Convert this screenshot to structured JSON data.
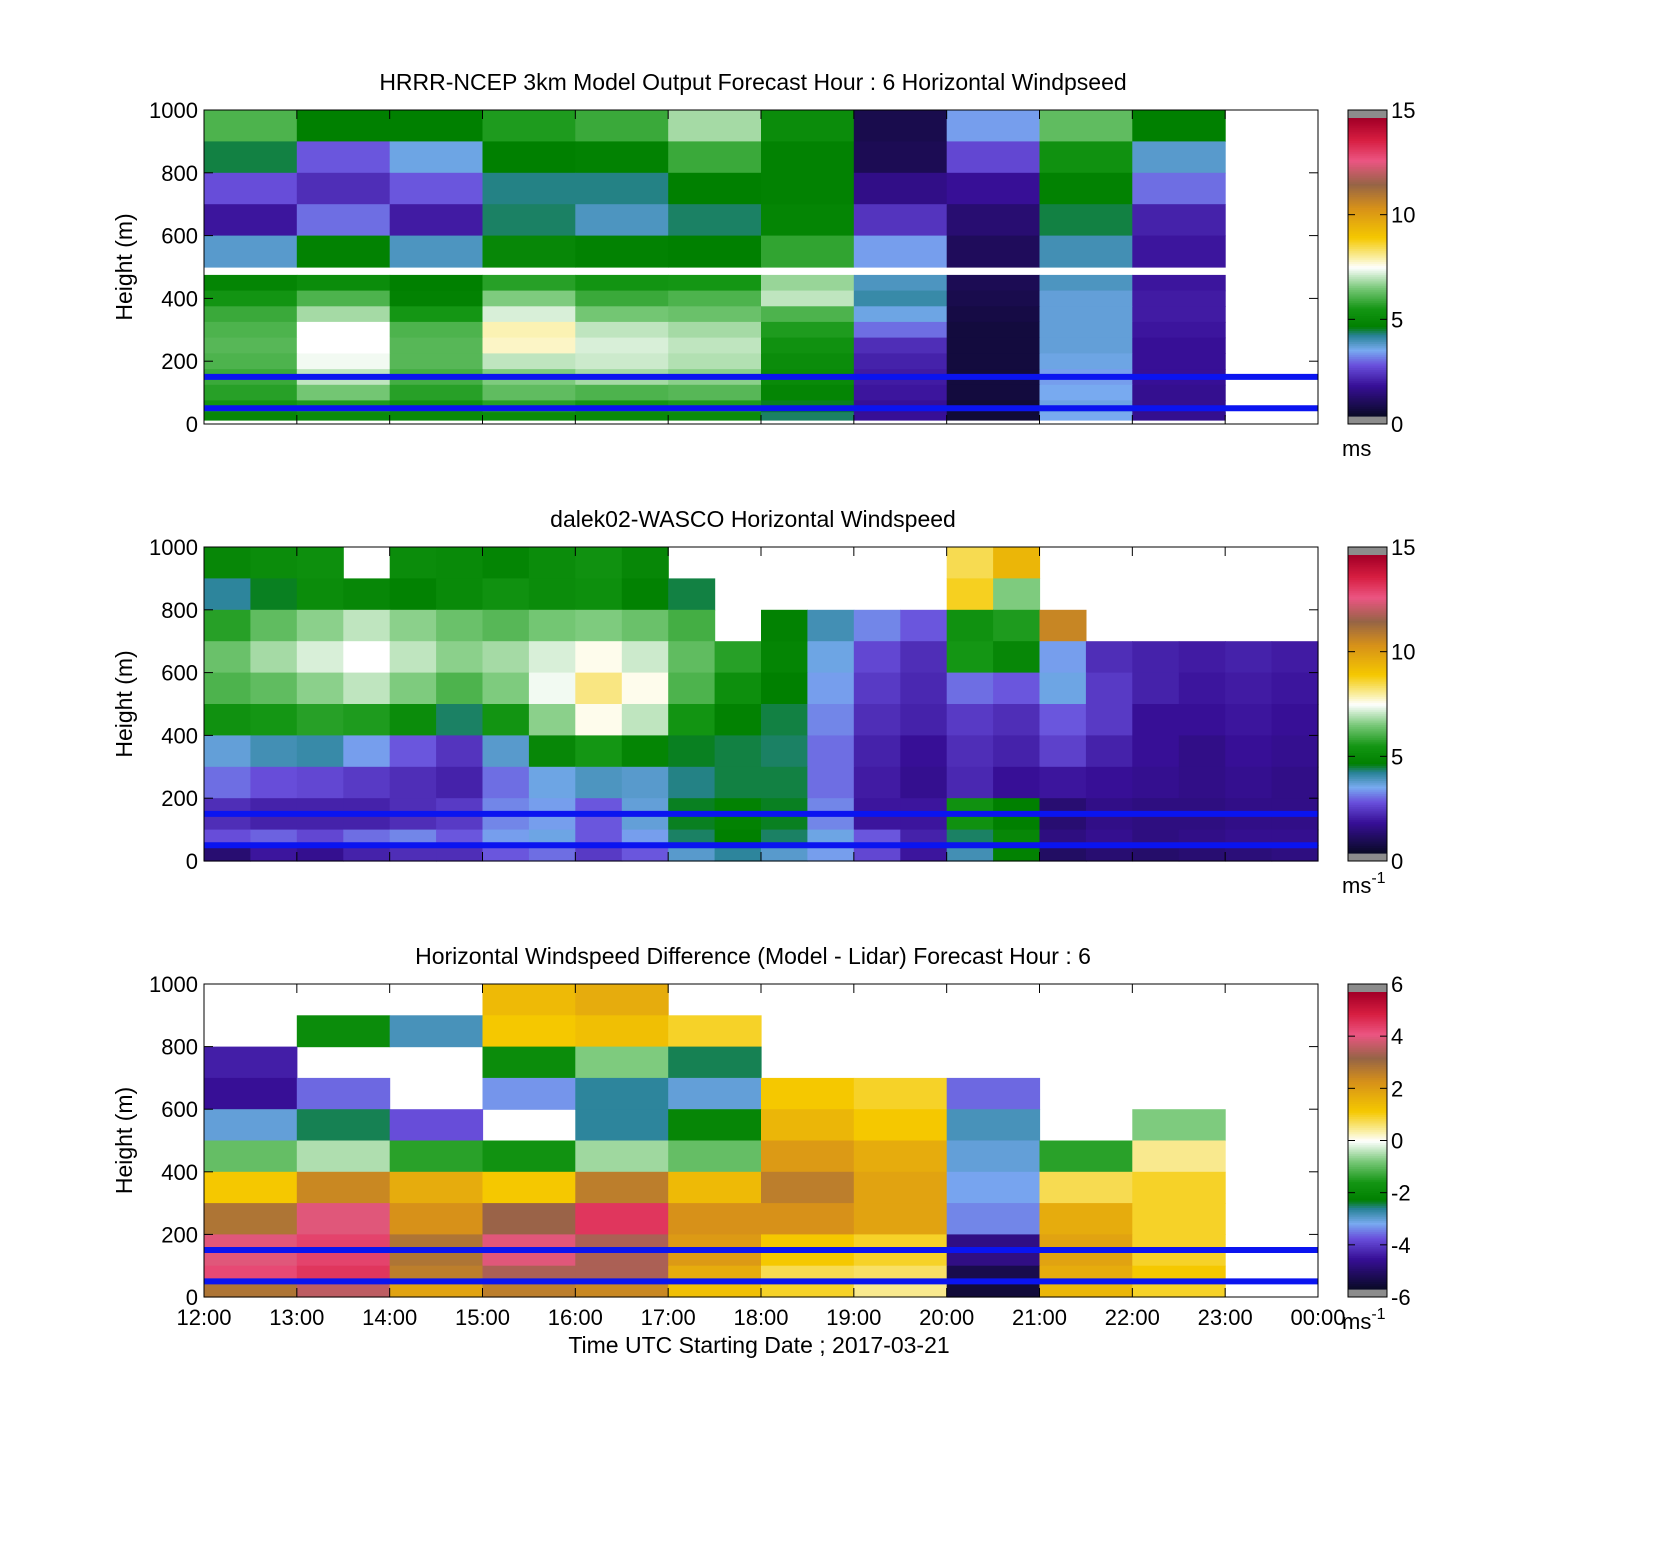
{
  "chart_data": [
    {
      "type": "heatmap",
      "title": "HRRR-NCEP 3km Model Output   Forecast Hour : 6 Horizontal Windpseed",
      "xlabel": "",
      "ylabel": "Height (m)",
      "ylim": [
        0,
        1000
      ],
      "yticks": [
        "0",
        "200",
        "400",
        "600",
        "800",
        "1000"
      ],
      "xtick_labels": [],
      "colorbar": {
        "min": 0,
        "max": 15,
        "ticks": [
          "0",
          "5",
          "10",
          "15"
        ],
        "unit": "ms",
        "unit_sup": ""
      },
      "reference_lines_m": [
        50,
        150
      ],
      "x_hours": [
        12,
        13,
        14,
        15,
        16,
        17,
        18,
        19,
        20,
        21,
        22
      ],
      "bin_hours": 1,
      "heights_m": [
        950,
        850,
        750,
        650,
        550,
        450,
        400,
        350,
        300,
        250,
        200,
        150,
        100,
        50,
        25
      ],
      "bin_heights_m": [
        100,
        100,
        100,
        100,
        100,
        50,
        50,
        50,
        50,
        50,
        50,
        50,
        50,
        50,
        25
      ],
      "values": [
        [
          6,
          4.5,
          4.5,
          5.5,
          5.8,
          6.8,
          5,
          0.5,
          3.2,
          6.2,
          4.5
        ],
        [
          4.3,
          2.6,
          3.4,
          4.5,
          4.6,
          5.8,
          4.6,
          0.6,
          2.4,
          5.2,
          3.6
        ],
        [
          2.5,
          2.0,
          2.6,
          4.1,
          4.1,
          4.5,
          4.6,
          1.3,
          1.5,
          4.6,
          2.8
        ],
        [
          1.6,
          2.8,
          1.7,
          4.2,
          3.7,
          4.2,
          4.7,
          2.1,
          1.0,
          4.3,
          1.8
        ],
        [
          3.6,
          4.6,
          3.7,
          4.8,
          4.6,
          4.5,
          5.7,
          3.2,
          0.7,
          3.8,
          1.6
        ],
        [
          4.7,
          5.0,
          4.5,
          5.6,
          5.3,
          5.4,
          6.7,
          3.7,
          0.6,
          3.7,
          1.6
        ],
        [
          5.3,
          6.0,
          4.6,
          6.5,
          5.8,
          6.0,
          7.0,
          3.9,
          0.5,
          3.5,
          1.7
        ],
        [
          5.8,
          6.8,
          5.4,
          7.2,
          6.4,
          6.3,
          6.0,
          3.4,
          0.4,
          3.5,
          1.7
        ],
        [
          6.0,
          7.5,
          6.0,
          7.9,
          7.0,
          6.8,
          5.5,
          2.8,
          0.3,
          3.5,
          1.6
        ],
        [
          6.1,
          7.5,
          6.1,
          7.8,
          7.2,
          7.0,
          5.2,
          2.0,
          0.3,
          3.5,
          1.5
        ],
        [
          6.0,
          7.4,
          6.1,
          7.0,
          7.1,
          6.9,
          5.0,
          1.8,
          0.3,
          3.4,
          1.5
        ],
        [
          5.8,
          7.0,
          5.9,
          6.5,
          6.8,
          6.6,
          4.9,
          1.7,
          0.3,
          3.2,
          1.5
        ],
        [
          5.6,
          6.4,
          5.6,
          6.2,
          6.0,
          6.1,
          4.7,
          1.6,
          0.3,
          3.3,
          1.4
        ],
        [
          5.3,
          5.5,
          5.2,
          5.6,
          5.4,
          5.5,
          4.4,
          1.5,
          0.2,
          3.4,
          1.4
        ],
        [
          4.8,
          5.0,
          4.9,
          5.0,
          4.9,
          5.0,
          4.2,
          1.5,
          0.2,
          3.3,
          1.4
        ]
      ]
    },
    {
      "type": "heatmap",
      "title": "dalek02-WASCO  Horizontal Windspeed",
      "xlabel": "",
      "ylabel": "Height (m)",
      "ylim": [
        0,
        1000
      ],
      "yticks": [
        "0",
        "200",
        "400",
        "600",
        "800",
        "1000"
      ],
      "xtick_labels": [],
      "colorbar": {
        "min": 0,
        "max": 15,
        "ticks": [
          "0",
          "5",
          "10",
          "15"
        ],
        "unit": "ms",
        "unit_sup": "-1"
      },
      "reference_lines_m": [
        50,
        150
      ],
      "x_hours": [
        12,
        12.5,
        13,
        13.5,
        14,
        14.5,
        15,
        15.5,
        16,
        16.5,
        17,
        17.5,
        18,
        18.5,
        19,
        19.5,
        20,
        20.5,
        21,
        21.5,
        22,
        22.5,
        23,
        23.5
      ],
      "bin_hours": 0.5,
      "heights_m": [
        950,
        850,
        750,
        650,
        550,
        450,
        350,
        250,
        150,
        75,
        25
      ],
      "bin_heights_m": [
        100,
        100,
        100,
        100,
        100,
        100,
        100,
        100,
        100,
        50,
        50
      ],
      "values": [
        [
          4.8,
          5.0,
          5.1,
          null,
          5.0,
          4.9,
          4.7,
          5.0,
          5.2,
          4.8,
          null,
          null,
          null,
          null,
          null,
          null,
          8.5,
          9.5,
          null,
          null,
          null,
          null,
          null,
          null
        ],
        [
          4.0,
          4.4,
          5.0,
          4.8,
          4.6,
          4.9,
          5.2,
          5.0,
          5.1,
          4.6,
          4.3,
          null,
          null,
          null,
          null,
          null,
          8.8,
          6.5,
          null,
          null,
          null,
          null,
          null,
          null
        ],
        [
          5.6,
          6.2,
          6.6,
          7.0,
          6.6,
          6.3,
          6.1,
          6.4,
          6.5,
          6.3,
          5.9,
          null,
          4.6,
          3.8,
          3.0,
          2.6,
          5.2,
          5.5,
          10.8,
          null,
          null,
          null,
          null,
          null
        ],
        [
          6.3,
          6.8,
          7.2,
          7.5,
          7.0,
          6.6,
          6.8,
          7.2,
          7.6,
          7.1,
          6.2,
          5.6,
          4.7,
          3.4,
          2.4,
          2.0,
          5.4,
          4.8,
          3.2,
          2.0,
          1.8,
          1.7,
          1.8,
          1.7
        ],
        [
          6.0,
          6.2,
          6.6,
          7.0,
          6.5,
          6.0,
          6.5,
          7.4,
          8.2,
          7.6,
          6.0,
          5.1,
          4.5,
          3.2,
          2.2,
          1.9,
          2.8,
          2.6,
          3.4,
          2.2,
          1.8,
          1.6,
          1.7,
          1.6
        ],
        [
          5.2,
          5.4,
          5.6,
          5.5,
          5.0,
          4.2,
          5.3,
          6.6,
          7.6,
          7.0,
          5.3,
          4.6,
          4.3,
          3.0,
          2.0,
          1.8,
          2.2,
          2.0,
          2.6,
          2.2,
          1.5,
          1.5,
          1.6,
          1.5
        ],
        [
          3.5,
          3.8,
          3.9,
          3.2,
          2.6,
          2.1,
          3.6,
          4.8,
          5.4,
          4.7,
          4.4,
          4.3,
          4.2,
          2.8,
          1.8,
          1.5,
          2.0,
          1.8,
          2.3,
          1.8,
          1.5,
          1.3,
          1.5,
          1.4
        ],
        [
          2.8,
          2.5,
          2.4,
          2.2,
          2.0,
          1.8,
          2.8,
          3.4,
          3.7,
          3.6,
          4.1,
          4.3,
          4.3,
          2.8,
          1.7,
          1.4,
          1.9,
          1.5,
          1.6,
          1.5,
          1.4,
          1.3,
          1.4,
          1.3
        ],
        [
          2.0,
          1.8,
          1.8,
          1.8,
          2.0,
          2.2,
          3.0,
          3.2,
          2.6,
          3.5,
          4.4,
          4.6,
          4.4,
          3.0,
          1.6,
          1.6,
          5.2,
          4.5,
          1.0,
          1.3,
          1.2,
          1.2,
          1.3,
          1.3
        ],
        [
          2.5,
          2.7,
          2.4,
          2.8,
          3.0,
          2.6,
          3.2,
          3.4,
          2.6,
          3.2,
          4.2,
          4.5,
          4.2,
          3.4,
          2.6,
          1.8,
          4.2,
          4.8,
          1.2,
          1.4,
          1.2,
          1.3,
          1.4,
          1.4
        ],
        [
          1.0,
          1.6,
          1.4,
          1.8,
          2.0,
          2.0,
          2.6,
          2.8,
          2.2,
          2.6,
          3.6,
          4.0,
          3.6,
          3.2,
          2.4,
          1.6,
          3.8,
          4.6,
          0.8,
          1.0,
          0.9,
          1.0,
          1.1,
          1.2
        ]
      ]
    },
    {
      "type": "heatmap",
      "title": "Horizontal Windspeed Difference (Model - Lidar) Forecast Hour : 6",
      "xlabel": "Time UTC  Starting Date ; 2017-03-21",
      "ylabel": "Height (m)",
      "ylim": [
        0,
        1000
      ],
      "yticks": [
        "0",
        "200",
        "400",
        "600",
        "800",
        "1000"
      ],
      "xtick_labels": [
        "12:00",
        "13:00",
        "14:00",
        "15:00",
        "16:00",
        "17:00",
        "18:00",
        "19:00",
        "20:00",
        "21:00",
        "22:00",
        "23:00",
        "00:00"
      ],
      "colorbar": {
        "min": -6,
        "max": 6,
        "ticks": [
          "-6",
          "-4",
          "-2",
          "0",
          "2",
          "4",
          "6"
        ],
        "unit": "ms",
        "unit_sup": "-1"
      },
      "reference_lines_m": [
        50,
        150
      ],
      "x_hours": [
        12,
        13,
        14,
        15,
        16,
        17,
        18,
        19,
        20,
        21,
        22
      ],
      "bin_hours": 1,
      "heights_m": [
        950,
        850,
        750,
        650,
        550,
        450,
        350,
        250,
        150,
        75,
        25
      ],
      "bin_heights_m": [
        100,
        100,
        100,
        100,
        100,
        100,
        100,
        100,
        100,
        50,
        50
      ],
      "values": [
        [
          null,
          null,
          null,
          1.5,
          1.8,
          null,
          null,
          null,
          null,
          null,
          null
        ],
        [
          null,
          -2.0,
          -3.0,
          1.2,
          1.4,
          1.0,
          null,
          null,
          null,
          null,
          null
        ],
        [
          -4.6,
          null,
          null,
          -2.0,
          -0.8,
          -2.6,
          null,
          null,
          null,
          null,
          null
        ],
        [
          -4.8,
          -3.8,
          null,
          -3.5,
          -2.8,
          -3.2,
          1.2,
          1.0,
          -3.8,
          null,
          null
        ],
        [
          -3.2,
          -2.6,
          -4.0,
          null,
          -2.8,
          -2.2,
          1.6,
          1.2,
          -3.0,
          null,
          -0.8
        ],
        [
          -1.0,
          -0.5,
          -1.5,
          -1.8,
          -0.6,
          -1.0,
          2.2,
          1.8,
          -3.2,
          -1.5,
          0.5
        ],
        [
          1.2,
          2.6,
          1.8,
          1.2,
          2.8,
          1.5,
          2.8,
          2.0,
          -3.4,
          0.8,
          1.0
        ],
        [
          3.0,
          4.2,
          2.4,
          3.4,
          4.8,
          2.4,
          2.4,
          2.0,
          -3.6,
          1.8,
          1.0
        ],
        [
          4.2,
          4.6,
          3.0,
          4.2,
          3.6,
          2.2,
          1.2,
          1.0,
          -5.0,
          2.0,
          1.0
        ],
        [
          4.5,
          4.8,
          2.8,
          3.6,
          3.6,
          1.8,
          0.8,
          0.7,
          -5.6,
          1.8,
          1.2
        ],
        [
          3.0,
          3.8,
          2.0,
          2.8,
          2.6,
          1.4,
          1.0,
          0.5,
          -5.8,
          1.6,
          1.0
        ]
      ]
    }
  ]
}
